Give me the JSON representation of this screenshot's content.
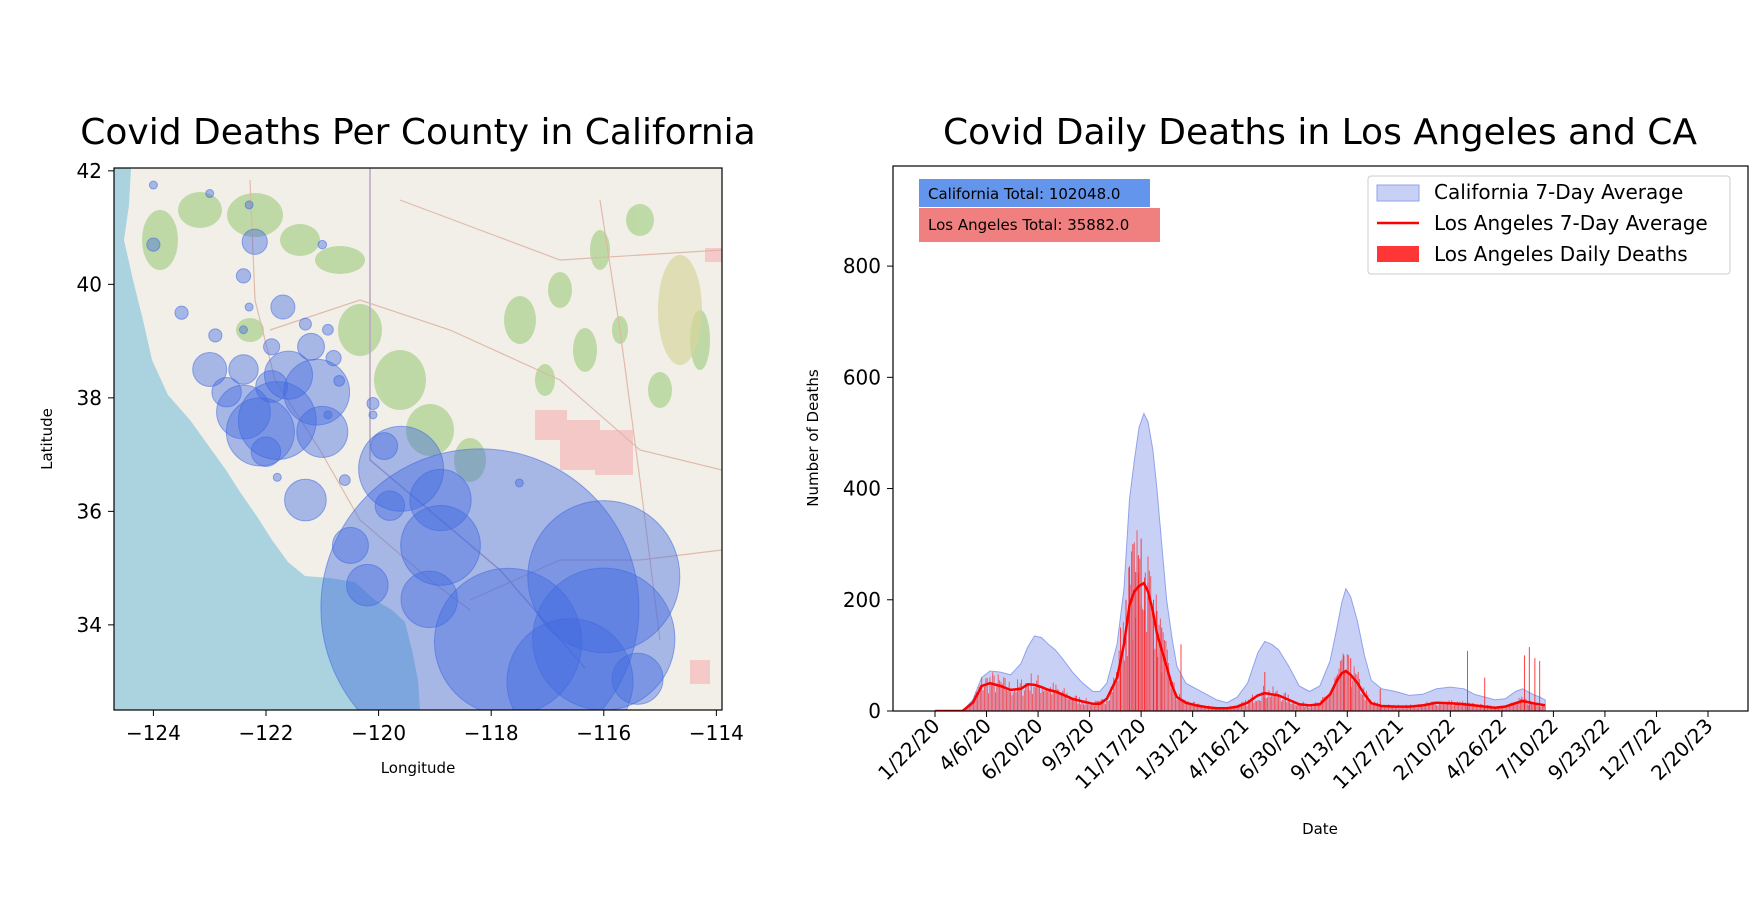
{
  "chart_data": [
    {
      "type": "scatter",
      "title": "Covid Deaths Per County in California",
      "xlabel": "Longitude",
      "ylabel": "Latitude",
      "xlim": [
        -124.7,
        -113.9
      ],
      "ylim": [
        32.5,
        42.05
      ],
      "xticks": [
        -124,
        -122,
        -120,
        -118,
        -116,
        -114
      ],
      "xtick_labels": [
        "−124",
        "−122",
        "−120",
        "−118",
        "−116",
        "−114"
      ],
      "yticks": [
        34,
        36,
        38,
        40,
        42
      ],
      "ytick_labels": [
        "34",
        "36",
        "38",
        "40",
        "42"
      ],
      "background": "street map of California and Nevada",
      "marker_color": "#4169e1",
      "points": [
        {
          "lon": -124.0,
          "lat": 41.75,
          "deaths": 10
        },
        {
          "lon": -123.0,
          "lat": 41.6,
          "deaths": 8
        },
        {
          "lon": -122.3,
          "lat": 41.4,
          "deaths": 10
        },
        {
          "lon": -124.0,
          "lat": 40.7,
          "deaths": 60
        },
        {
          "lon": -122.2,
          "lat": 40.75,
          "deaths": 220
        },
        {
          "lon": -122.4,
          "lat": 40.15,
          "deaths": 70
        },
        {
          "lon": -121.0,
          "lat": 40.7,
          "deaths": 25
        },
        {
          "lon": -123.5,
          "lat": 39.5,
          "deaths": 60
        },
        {
          "lon": -122.3,
          "lat": 39.6,
          "deaths": 20
        },
        {
          "lon": -121.7,
          "lat": 39.6,
          "deaths": 200
        },
        {
          "lon": -121.3,
          "lat": 39.3,
          "deaths": 50
        },
        {
          "lon": -120.9,
          "lat": 39.2,
          "deaths": 40
        },
        {
          "lon": -122.9,
          "lat": 39.1,
          "deaths": 60
        },
        {
          "lon": -122.4,
          "lat": 39.2,
          "deaths": 20
        },
        {
          "lon": -121.9,
          "lat": 38.9,
          "deaths": 90
        },
        {
          "lon": -121.2,
          "lat": 38.9,
          "deaths": 250
        },
        {
          "lon": -120.8,
          "lat": 38.7,
          "deaths": 80
        },
        {
          "lon": -120.7,
          "lat": 38.3,
          "deaths": 40
        },
        {
          "lon": -121.6,
          "lat": 38.4,
          "deaths": 800
        },
        {
          "lon": -122.4,
          "lat": 38.5,
          "deaths": 300
        },
        {
          "lon": -121.9,
          "lat": 38.2,
          "deaths": 350
        },
        {
          "lon": -123.0,
          "lat": 38.5,
          "deaths": 400
        },
        {
          "lon": -122.7,
          "lat": 38.1,
          "deaths": 300
        },
        {
          "lon": -121.1,
          "lat": 38.1,
          "deaths": 1500
        },
        {
          "lon": -122.4,
          "lat": 37.75,
          "deaths": 1000
        },
        {
          "lon": -121.8,
          "lat": 37.6,
          "deaths": 2100
        },
        {
          "lon": -122.1,
          "lat": 37.4,
          "deaths": 1600
        },
        {
          "lon": -121.0,
          "lat": 37.4,
          "deaths": 900
        },
        {
          "lon": -122.0,
          "lat": 37.05,
          "deaths": 300
        },
        {
          "lon": -120.1,
          "lat": 37.9,
          "deaths": 50
        },
        {
          "lon": -120.6,
          "lat": 36.55,
          "deaths": 40
        },
        {
          "lon": -121.3,
          "lat": 36.2,
          "deaths": 600
        },
        {
          "lon": -120.1,
          "lat": 37.7,
          "deaths": 20
        },
        {
          "lon": -119.9,
          "lat": 37.15,
          "deaths": 250
        },
        {
          "lon": -119.6,
          "lat": 36.75,
          "deaths": 2500
        },
        {
          "lon": -119.8,
          "lat": 36.1,
          "deaths": 300
        },
        {
          "lon": -118.9,
          "lat": 36.2,
          "deaths": 1300
        },
        {
          "lon": -118.9,
          "lat": 35.4,
          "deaths": 2200
        },
        {
          "lon": -120.5,
          "lat": 35.4,
          "deaths": 450
        },
        {
          "lon": -120.2,
          "lat": 34.7,
          "deaths": 600
        },
        {
          "lon": -119.1,
          "lat": 34.45,
          "deaths": 1100
        },
        {
          "lon": -118.2,
          "lat": 34.3,
          "deaths": 35000
        },
        {
          "lon": -117.7,
          "lat": 33.7,
          "deaths": 7500
        },
        {
          "lon": -116.0,
          "lat": 34.85,
          "deaths": 8000
        },
        {
          "lon": -116.0,
          "lat": 33.75,
          "deaths": 7000
        },
        {
          "lon": -116.6,
          "lat": 33.0,
          "deaths": 5500
        },
        {
          "lon": -115.4,
          "lat": 33.05,
          "deaths": 900
        },
        {
          "lon": -117.5,
          "lat": 36.5,
          "deaths": 10
        },
        {
          "lon": -120.9,
          "lat": 37.7,
          "deaths": 15
        },
        {
          "lon": -121.8,
          "lat": 36.6,
          "deaths": 10
        }
      ]
    },
    {
      "type": "area",
      "title": "Covid Daily Deaths in Los Angeles and CA",
      "xlabel": "Date",
      "ylabel": "Number of Deaths",
      "ylim": [
        0,
        980
      ],
      "yticks": [
        0,
        200,
        400,
        600,
        800
      ],
      "x_tick_labels": [
        "1/22/20",
        "4/6/20",
        "6/20/20",
        "9/3/20",
        "11/17/20",
        "1/31/21",
        "4/16/21",
        "6/30/21",
        "9/13/21",
        "11/27/21",
        "2/10/22",
        "4/26/22",
        "7/10/22",
        "9/23/22",
        "12/7/22",
        "2/20/23"
      ],
      "x_start": "1/22/20",
      "x_end": "3/9/23",
      "tick_step_days": 75,
      "legend": [
        "California 7-Day Average",
        "Los Angeles 7-Day Average",
        "Los Angeles Daily Deaths"
      ],
      "legend_position": "upper-right",
      "annotations": [
        {
          "text": "California Total: 102048.0",
          "color": "#6495ed"
        },
        {
          "text": "Los Angeles Total: 35882.0",
          "color": "#f08080"
        }
      ],
      "series": [
        {
          "name": "California 7-Day Average",
          "color": "#aab8ef",
          "points": [
            [
              0,
              0
            ],
            [
              40,
              0
            ],
            [
              55,
              20
            ],
            [
              68,
              60
            ],
            [
              80,
              72
            ],
            [
              95,
              70
            ],
            [
              110,
              65
            ],
            [
              125,
              85
            ],
            [
              135,
              115
            ],
            [
              145,
              135
            ],
            [
              155,
              132
            ],
            [
              165,
              120
            ],
            [
              175,
              110
            ],
            [
              185,
              95
            ],
            [
              200,
              70
            ],
            [
              215,
              50
            ],
            [
              230,
              35
            ],
            [
              240,
              35
            ],
            [
              250,
              50
            ],
            [
              265,
              120
            ],
            [
              275,
              220
            ],
            [
              283,
              380
            ],
            [
              290,
              450
            ],
            [
              297,
              510
            ],
            [
              304,
              535
            ],
            [
              310,
              520
            ],
            [
              317,
              470
            ],
            [
              323,
              400
            ],
            [
              330,
              300
            ],
            [
              337,
              200
            ],
            [
              345,
              130
            ],
            [
              352,
              80
            ],
            [
              365,
              50
            ],
            [
              380,
              40
            ],
            [
              395,
              30
            ],
            [
              410,
              20
            ],
            [
              425,
              15
            ],
            [
              440,
              25
            ],
            [
              455,
              50
            ],
            [
              470,
              105
            ],
            [
              480,
              125
            ],
            [
              490,
              120
            ],
            [
              500,
              110
            ],
            [
              515,
              80
            ],
            [
              530,
              45
            ],
            [
              545,
              35
            ],
            [
              560,
              45
            ],
            [
              575,
              90
            ],
            [
              585,
              150
            ],
            [
              592,
              195
            ],
            [
              598,
              220
            ],
            [
              605,
              205
            ],
            [
              615,
              160
            ],
            [
              625,
              100
            ],
            [
              635,
              55
            ],
            [
              650,
              40
            ],
            [
              670,
              35
            ],
            [
              690,
              28
            ],
            [
              710,
              30
            ],
            [
              730,
              40
            ],
            [
              750,
              43
            ],
            [
              770,
              40
            ],
            [
              785,
              30
            ],
            [
              800,
              25
            ],
            [
              815,
              20
            ],
            [
              830,
              22
            ],
            [
              845,
              35
            ],
            [
              855,
              40
            ],
            [
              870,
              30
            ],
            [
              880,
              25
            ],
            [
              888,
              20
            ]
          ]
        },
        {
          "name": "Los Angeles 7-Day Average",
          "color": "#ff0000",
          "points": [
            [
              0,
              0
            ],
            [
              40,
              0
            ],
            [
              55,
              15
            ],
            [
              68,
              45
            ],
            [
              80,
              50
            ],
            [
              95,
              45
            ],
            [
              110,
              38
            ],
            [
              125,
              40
            ],
            [
              135,
              48
            ],
            [
              145,
              47
            ],
            [
              155,
              43
            ],
            [
              165,
              38
            ],
            [
              175,
              35
            ],
            [
              185,
              30
            ],
            [
              200,
              22
            ],
            [
              215,
              17
            ],
            [
              230,
              13
            ],
            [
              240,
              13
            ],
            [
              250,
              22
            ],
            [
              265,
              60
            ],
            [
              275,
              120
            ],
            [
              283,
              190
            ],
            [
              290,
              215
            ],
            [
              297,
              225
            ],
            [
              304,
              230
            ],
            [
              310,
              215
            ],
            [
              317,
              180
            ],
            [
              323,
              140
            ],
            [
              330,
              110
            ],
            [
              337,
              80
            ],
            [
              345,
              45
            ],
            [
              352,
              25
            ],
            [
              365,
              15
            ],
            [
              380,
              10
            ],
            [
              395,
              7
            ],
            [
              410,
              5
            ],
            [
              425,
              5
            ],
            [
              440,
              8
            ],
            [
              455,
              15
            ],
            [
              470,
              28
            ],
            [
              480,
              32
            ],
            [
              490,
              30
            ],
            [
              500,
              28
            ],
            [
              515,
              20
            ],
            [
              530,
              12
            ],
            [
              545,
              10
            ],
            [
              560,
              12
            ],
            [
              575,
              30
            ],
            [
              585,
              55
            ],
            [
              592,
              68
            ],
            [
              598,
              72
            ],
            [
              605,
              65
            ],
            [
              615,
              50
            ],
            [
              625,
              30
            ],
            [
              635,
              14
            ],
            [
              650,
              9
            ],
            [
              670,
              8
            ],
            [
              690,
              8
            ],
            [
              710,
              10
            ],
            [
              730,
              15
            ],
            [
              750,
              14
            ],
            [
              770,
              12
            ],
            [
              785,
              10
            ],
            [
              800,
              8
            ],
            [
              815,
              6
            ],
            [
              830,
              8
            ],
            [
              845,
              14
            ],
            [
              855,
              18
            ],
            [
              870,
              14
            ],
            [
              880,
              12
            ],
            [
              888,
              10
            ]
          ]
        },
        {
          "name": "Los Angeles Daily Deaths",
          "color": "#ff2020",
          "type": "bar",
          "spikes": [
            [
              270,
              150
            ],
            [
              278,
              200
            ],
            [
              283,
              260
            ],
            [
              288,
              300
            ],
            [
              292,
              250
            ],
            [
              296,
              280
            ],
            [
              300,
              310
            ],
            [
              305,
              240
            ],
            [
              310,
              230
            ],
            [
              318,
              200
            ],
            [
              323,
              180
            ],
            [
              330,
              150
            ],
            [
              358,
              120
            ],
            [
              480,
              70
            ],
            [
              595,
              100
            ],
            [
              605,
              95
            ],
            [
              648,
              40
            ],
            [
              775,
              108
            ],
            [
              800,
              60
            ],
            [
              858,
              100
            ],
            [
              865,
              115
            ],
            [
              873,
              95
            ],
            [
              880,
              90
            ]
          ]
        }
      ]
    }
  ]
}
